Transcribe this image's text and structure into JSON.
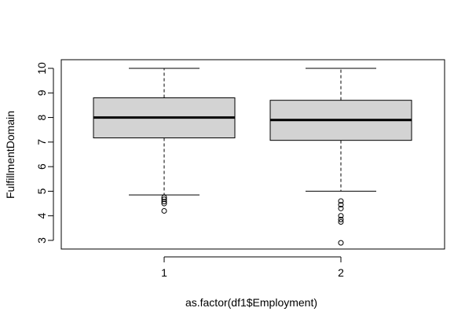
{
  "chart_data": {
    "type": "boxplot",
    "xlabel": "as.factor(df1$Employment)",
    "ylabel": "FulfillmentDomain",
    "ylim": [
      2.6,
      10.45
    ],
    "yticks": [
      3,
      4,
      5,
      6,
      7,
      8,
      9,
      10
    ],
    "categories": [
      "1",
      "2"
    ],
    "boxes": [
      {
        "category": "1",
        "whisker_low": 4.85,
        "q1": 7.17,
        "median": 8.0,
        "q3": 8.8,
        "whisker_high": 10.0,
        "outliers": [
          4.75,
          4.67,
          4.58,
          4.5,
          4.2
        ]
      },
      {
        "category": "2",
        "whisker_low": 5.0,
        "q1": 7.07,
        "median": 7.9,
        "q3": 8.7,
        "whisker_high": 10.0,
        "outliers": [
          4.6,
          4.45,
          4.3,
          4.0,
          3.85,
          3.75,
          2.9
        ]
      }
    ],
    "box_fill": "#d3d3d3",
    "grid": false,
    "legend": "none"
  }
}
